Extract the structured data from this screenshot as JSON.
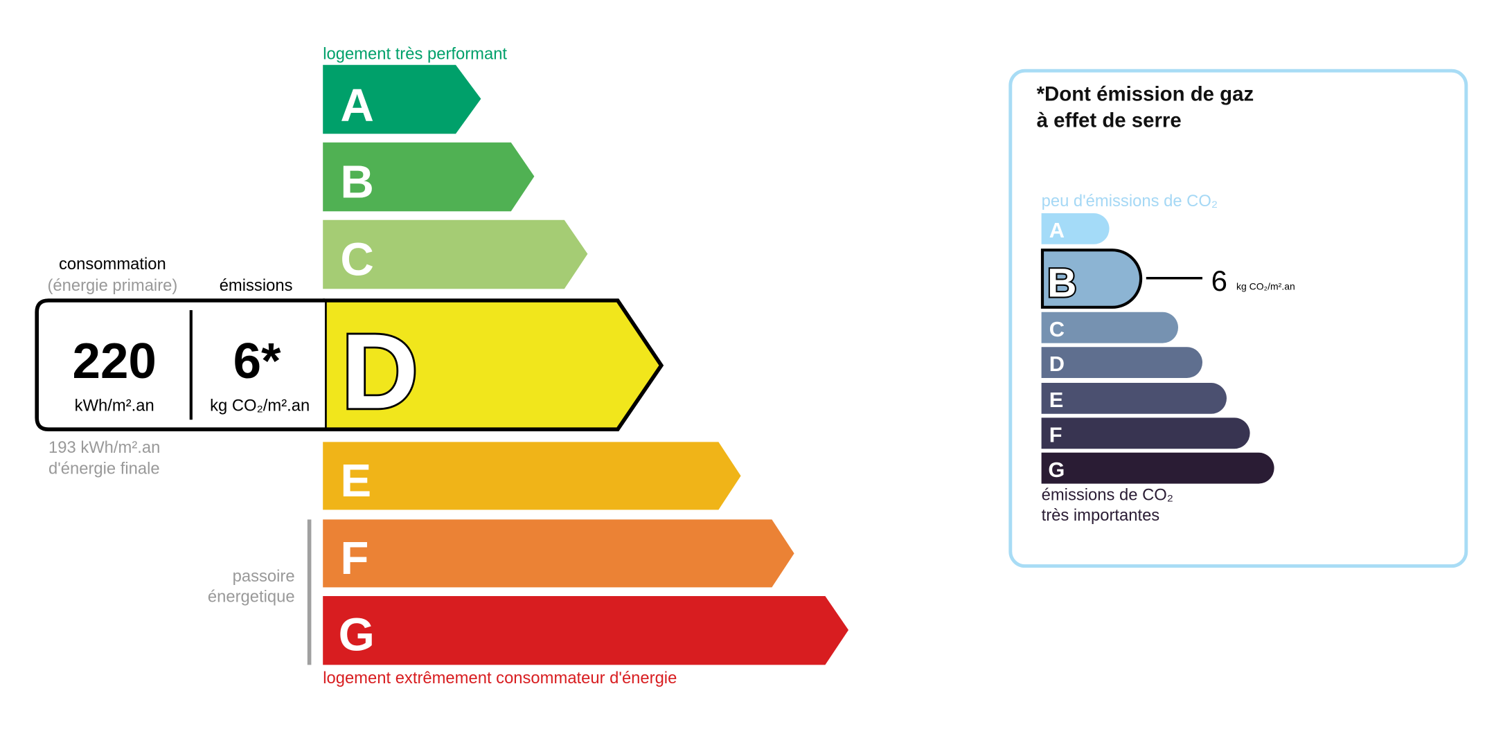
{
  "energy": {
    "top_label": "logement très performant",
    "bottom_label": "logement extrêmement consommateur d'énergie",
    "current_class": "D",
    "classes": [
      {
        "letter": "A",
        "color": "#00a06a"
      },
      {
        "letter": "B",
        "color": "#50b153"
      },
      {
        "letter": "C",
        "color": "#a5cc74"
      },
      {
        "letter": "D",
        "color": "#f1e61c"
      },
      {
        "letter": "E",
        "color": "#f0b418"
      },
      {
        "letter": "F",
        "color": "#eb8235"
      },
      {
        "letter": "G",
        "color": "#d81d20"
      }
    ],
    "passoire_line1": "passoire",
    "passoire_line2": "énergetique"
  },
  "readout": {
    "consumption_label": "consommation",
    "consumption_sublabel": "(énergie primaire)",
    "emissions_label": "émissions",
    "consumption_value": "220",
    "consumption_unit": "kWh/m².an",
    "emissions_value": "6*",
    "emissions_unit": "kg CO₂/m².an",
    "final_energy_value": "193 kWh/m².an",
    "final_energy_label": "d'énergie finale"
  },
  "ges": {
    "title_line1": "*Dont émission de gaz",
    "title_line2": "à effet de serre",
    "top_label": "peu d'émissions de CO₂",
    "bottom_line1": "émissions de CO₂",
    "bottom_line2": "très importantes",
    "current_class": "B",
    "value": "6",
    "unit": "kg CO₂/m².an",
    "classes": [
      {
        "letter": "A",
        "color": "#a4dbf8"
      },
      {
        "letter": "B",
        "color": "#8cb4d3"
      },
      {
        "letter": "C",
        "color": "#7692b1"
      },
      {
        "letter": "D",
        "color": "#5f6f8f"
      },
      {
        "letter": "E",
        "color": "#4b5070"
      },
      {
        "letter": "F",
        "color": "#383451"
      },
      {
        "letter": "G",
        "color": "#2a1c34"
      }
    ],
    "border_color": "#a8dcf5"
  }
}
